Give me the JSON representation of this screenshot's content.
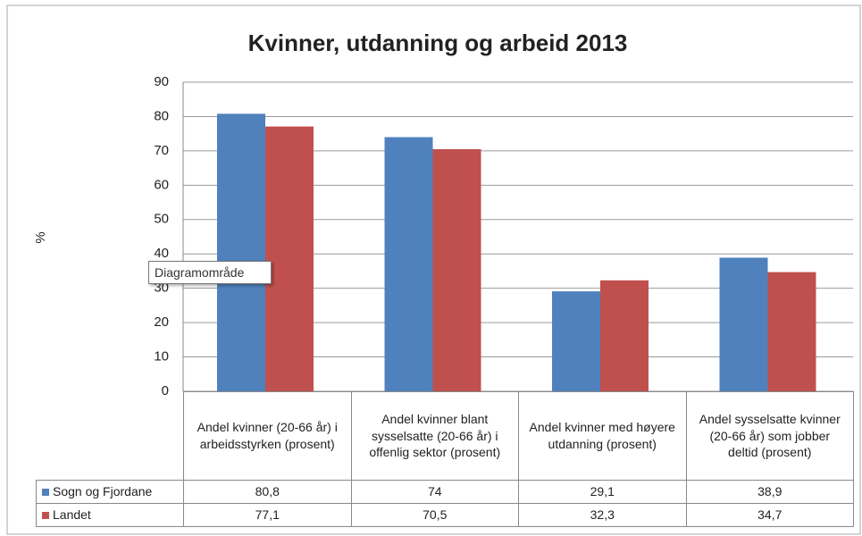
{
  "chart_data": {
    "type": "bar",
    "title": "Kvinner, utdanning og arbeid 2013",
    "y_label": "%",
    "categories": [
      "Andel kvinner (20-66 år) i arbeidsstyrken (prosent)",
      "Andel kvinner blant sysselsatte (20-66 år) i offenlig sektor (prosent)",
      "Andel kvinner med høyere utdanning (prosent)",
      "Andel sysselsatte kvinner (20-66 år) som jobber deltid (prosent)"
    ],
    "series": [
      {
        "name": "Sogn og Fjordane",
        "color": "#4f81bd",
        "values": [
          80.8,
          74,
          29.1,
          38.9
        ],
        "value_labels": [
          "80,8",
          "74",
          "29,1",
          "38,9"
        ]
      },
      {
        "name": "Landet",
        "color": "#c0504d",
        "values": [
          77.1,
          70.5,
          32.3,
          34.7
        ],
        "value_labels": [
          "77,1",
          "70,5",
          "32,3",
          "34,7"
        ]
      }
    ],
    "ylim": [
      0,
      90
    ],
    "yticks": [
      0,
      10,
      20,
      30,
      40,
      50,
      60,
      70,
      80,
      90
    ],
    "grid": true,
    "tooltip": "Diagramområde"
  }
}
